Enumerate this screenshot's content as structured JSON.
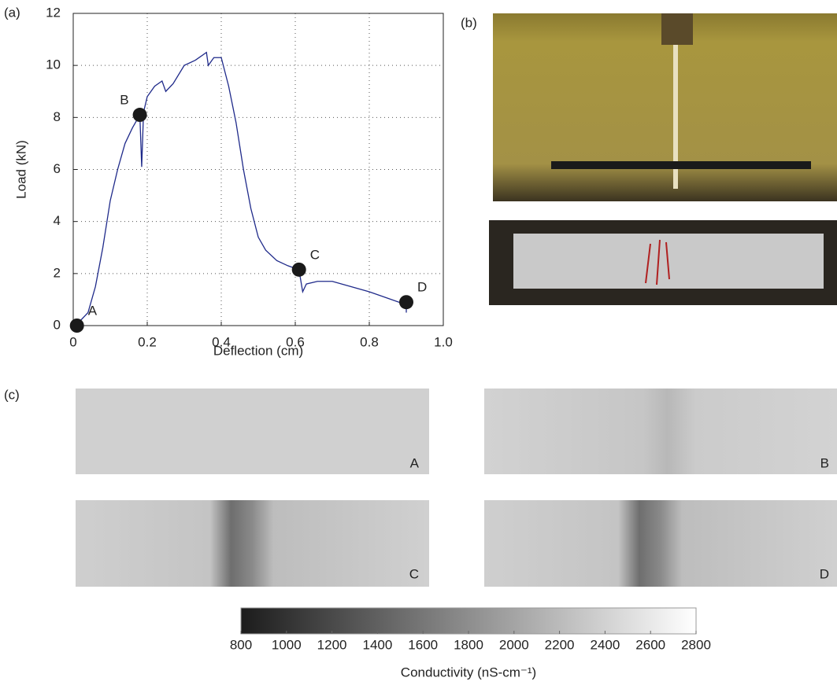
{
  "panels": {
    "a": "(a)",
    "b": "(b)",
    "c": "(c)"
  },
  "maps": [
    "A",
    "B",
    "C",
    "D"
  ],
  "chart_data": [
    {
      "type": "line",
      "x_label": "Deflection  (cm)",
      "y_label": "Load  (kN)",
      "xlim": [
        0,
        1
      ],
      "ylim": [
        0,
        12
      ],
      "xticks": [
        0,
        0.2,
        0.4,
        0.6,
        0.8,
        {
          "value": 1,
          "label": "1.0"
        }
      ],
      "yticks": [
        0,
        2,
        4,
        6,
        8,
        10,
        12
      ],
      "grid": true,
      "x": [
        0,
        0.02,
        0.04,
        0.06,
        0.08,
        0.1,
        0.12,
        0.14,
        0.16,
        0.18,
        0.185,
        0.19,
        0.2,
        0.22,
        0.24,
        0.25,
        0.27,
        0.3,
        0.33,
        0.36,
        0.365,
        0.38,
        0.4,
        0.42,
        0.44,
        0.46,
        0.48,
        0.5,
        0.52,
        0.55,
        0.58,
        0.61,
        0.62,
        0.63,
        0.66,
        0.7,
        0.75,
        0.8,
        0.85,
        0.9,
        0.9
      ],
      "series": [
        {
          "color": "#1f2a8a",
          "values": [
            0,
            0.2,
            0.5,
            1.5,
            3,
            4.8,
            6,
            7,
            7.6,
            8.1,
            6.1,
            8.2,
            8.8,
            9.2,
            9.4,
            9,
            9.3,
            10,
            10.2,
            10.5,
            10,
            10.3,
            10.3,
            9.2,
            7.8,
            6,
            4.5,
            3.4,
            2.9,
            2.5,
            2.3,
            2.15,
            1.3,
            1.6,
            1.7,
            1.7,
            1.5,
            1.3,
            1.05,
            0.8,
            0.5
          ]
        }
      ],
      "points": [
        {
          "label": "A",
          "x": 0.01,
          "y": 0
        },
        {
          "label": "B",
          "x": 0.18,
          "y": 8.1
        },
        {
          "label": "C",
          "x": 0.61,
          "y": 2.15
        },
        {
          "label": "D",
          "x": 0.9,
          "y": 0.9
        }
      ],
      "point_color": "#1a1a1a"
    },
    {
      "type": "colorbar",
      "x_label": "Conductivity (nS-cm⁻¹)",
      "xlim": [
        800,
        2800
      ],
      "xticks": [
        800,
        1000,
        1200,
        1400,
        1600,
        1800,
        2000,
        2200,
        2400,
        2600,
        2800
      ],
      "colormap": [
        "#1c1c1c",
        "#ffffff"
      ]
    }
  ]
}
